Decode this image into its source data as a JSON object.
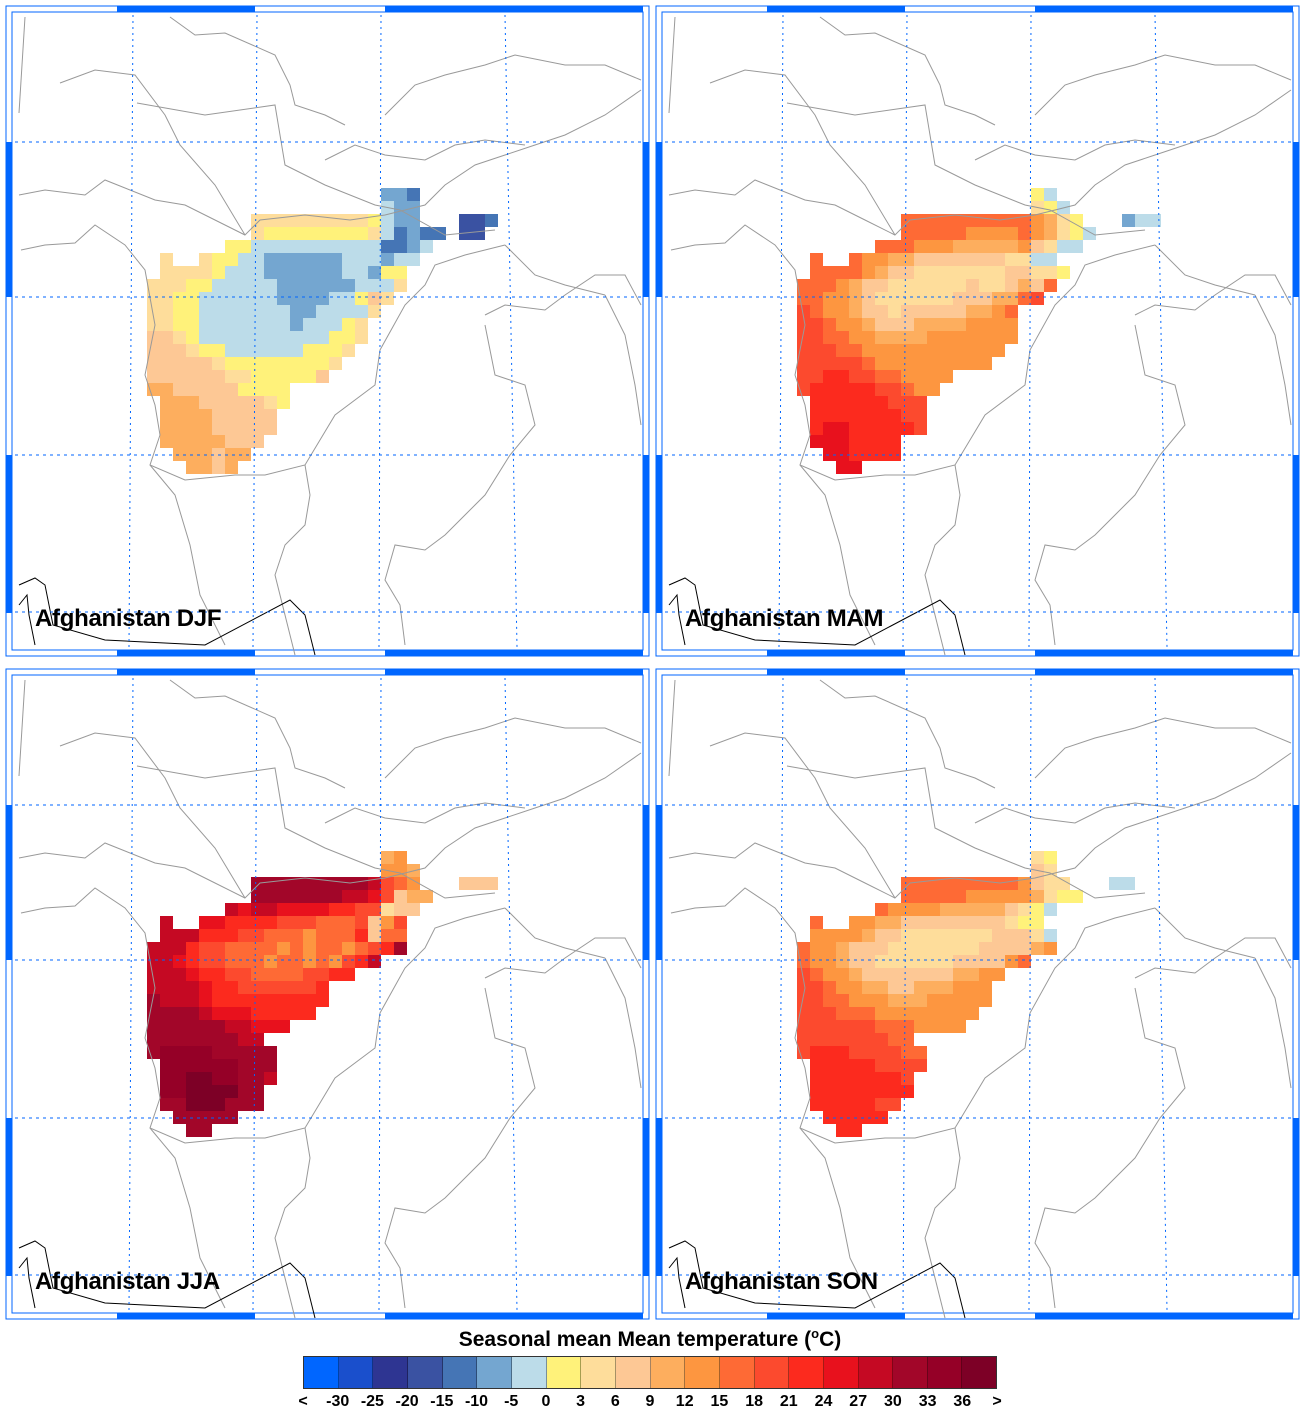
{
  "chart_data": {
    "type": "heatmap",
    "title": "Seasonal mean Mean temperature (°C)",
    "title_parts": {
      "prefix": "Seasonal mean Mean temperature (",
      "sup": "o",
      "suffix": "C)"
    },
    "legend": {
      "labels": [
        "<",
        "-30",
        "-25",
        "-20",
        "-15",
        "-10",
        "-5",
        "0",
        "3",
        "6",
        "9",
        "12",
        "15",
        "18",
        "21",
        "24",
        "27",
        "30",
        "33",
        "36",
        ">"
      ],
      "colors": [
        "#0066ff",
        "#1a4fcc",
        "#2e3592",
        "#3a52a2",
        "#4575b5",
        "#74a6d0",
        "#bcdce9",
        "#fff27a",
        "#fedd9b",
        "#fdc895",
        "#fdae5e",
        "#fd9640",
        "#fe6a35",
        "#fc4a2e",
        "#fc2a1e",
        "#e8111d",
        "#c50923",
        "#a20629",
        "#950027",
        "#7d0026"
      ]
    },
    "grid_encoding": "characters 0-9 then a-j index legend colors; '.' = no data",
    "panels": [
      {
        "title": "Afghanistan DJF",
        "grid": [
          "..................554",
          "..................655",
          "........8888888887655...334",
          "........877777777864544.33",
          "......7766666666664456",
          ".8..87766555555666566",
          ".8888766655555566577",
          "88877666665555556668",
          "8877666666555566798",
          "887766666665566668",
          "88776666666566678",
          "99876666666666778",
          "9998776666667778",
          "999998777777778",
          "99999988777779",
          "aa999997777",
          ".aaa9999987",
          ".aaaa99999",
          ".aaaa99999",
          ".aaaaa999",
          "..aaa9aa",
          "...aa9a"
        ]
      },
      {
        "title": "Afghanistan MAM",
        "grid": [
          "..................76",
          "..................876",
          "........ccccccccccba87...566",
          "........cccccbbbbcba876",
          "......cccbbbaaaaab9866",
          ".c..cbbaa99999998866",
          ".ccccba99888888899887",
          "cccba998888889889a9c",
          "ccbba9888888999aacd",
          "dcbba99899999aabc",
          "ddcbba999aaaabbbb",
          "ddccbbaaaabbbbbbb",
          "dddccbbbbbbbbbbb",
          "dddddcbbbbbbbbb",
          "ddeeddccbbbb",
          "deeeeeddcbb",
          ".eeeeeeddd",
          ".eeeeeeedd",
          ".effeeeeed",
          ".fffeeee",
          "..ffeeee",
          "...ff"
        ]
      },
      {
        "title": "Afghanistan JJA",
        "grid": [
          "..................ab",
          "..................bba",
          "........hhhhhhhhhgdcb...999",
          "........hhhhhhhggfd9aa",
          "......gfggffffeedd899",
          ".g..ffeeeedddcccd9bd",
          ".gggeeeddcccbccce9cc",
          "gggeddccccbcbccbcdeh",
          "ggfeddcccbccbcbdeg",
          "gggfeeddccccddee",
          "ggggfeedddddde",
          "hgggfeeeeeeeee",
          "hhhhgfffeeeee",
          "hhhhhhggfff",
          "hhhhhhhgg",
          "hiiiihhhhh",
          ".iiiiiihhh",
          ".iijjiihhg",
          ".iijjjjhh",
          ".hhjjjhhh",
          "..hhhhh",
          "...hh"
        ]
      },
      {
        "title": "Afghanistan SON",
        "grid": [
          "..................87",
          "..................98",
          "........cccccccccb988...66",
          "........cccccbbbbba877",
          "......cbbbbaaaaa9876",
          ".c..bbaa99999999877",
          ".bbbba99888888899986",
          "cbba99988888889999ab",
          "cbba998888889999bc",
          "dcbba9999999aabb",
          "ddcbbaa99aaabbb",
          "ddccbbbaaabbbbb",
          "dddcccbbbbbbbb",
          "ddddddcccbbbb",
          "dddddddcc",
          "deeeddddcc",
          ".eeeeedddd",
          ".eeeeeeed",
          ".eeeeeeee",
          ".eeeeedd",
          "..eeeee",
          "...ee"
        ]
      }
    ]
  }
}
